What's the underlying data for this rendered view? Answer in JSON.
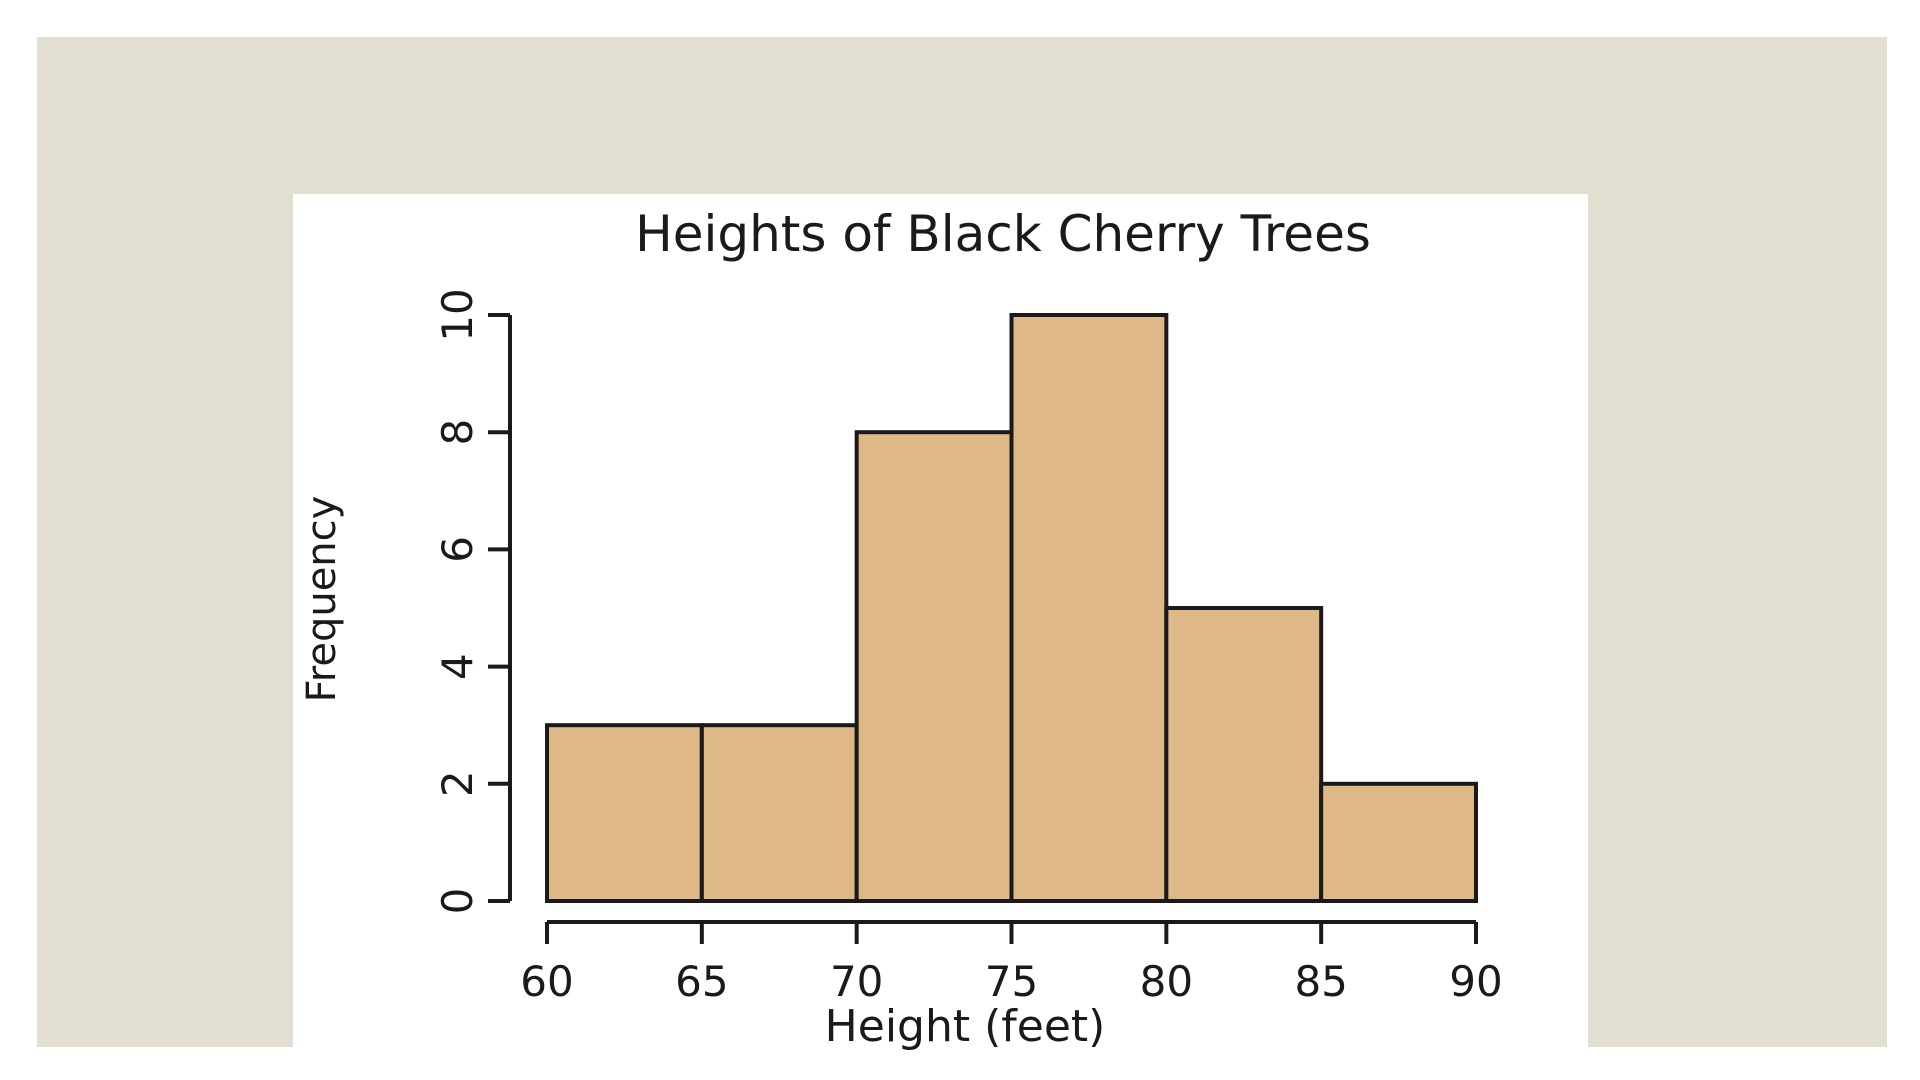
{
  "colors": {
    "frame_background": "#e2dfd0",
    "panel_background": "#ffffff",
    "bar_fill": "#deb887",
    "bar_stroke": "#1a1a1a"
  },
  "chart_data": {
    "type": "histogram",
    "title": "Heights of Black Cherry Trees",
    "xlabel": "Height (feet)",
    "ylabel": "Frequency",
    "bins": [
      {
        "start": 60,
        "end": 65,
        "count": 3
      },
      {
        "start": 65,
        "end": 70,
        "count": 3
      },
      {
        "start": 70,
        "end": 75,
        "count": 8
      },
      {
        "start": 75,
        "end": 80,
        "count": 10
      },
      {
        "start": 80,
        "end": 85,
        "count": 5
      },
      {
        "start": 85,
        "end": 90,
        "count": 2
      }
    ],
    "xlim": [
      60,
      90
    ],
    "ylim": [
      0,
      10
    ],
    "xticks": [
      "60",
      "65",
      "70",
      "75",
      "80",
      "85",
      "90"
    ],
    "yticks": [
      "0",
      "2",
      "4",
      "6",
      "8",
      "10"
    ],
    "grid": false,
    "legend": false
  }
}
